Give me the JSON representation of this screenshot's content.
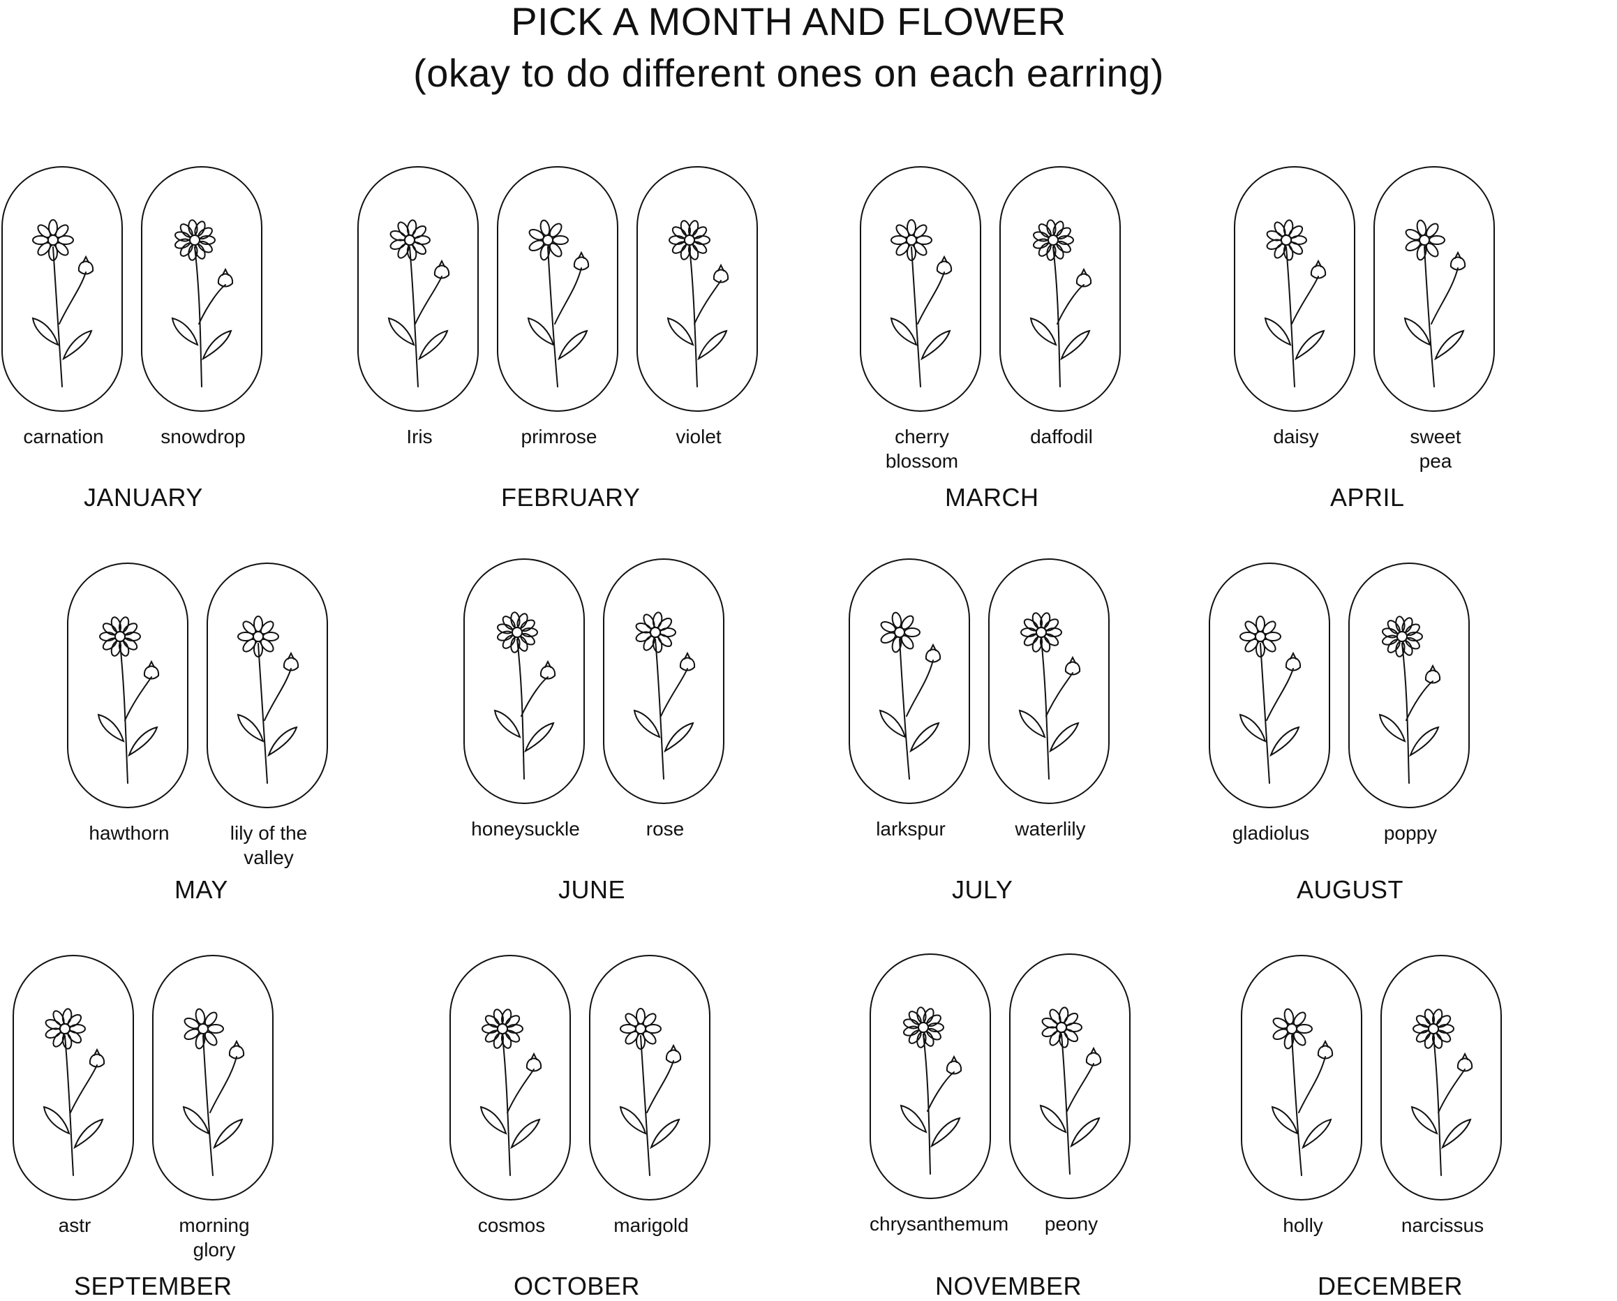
{
  "title": {
    "line1": "PICK A MONTH AND FLOWER",
    "line2": "(okay to do different ones on each earring)"
  },
  "months": [
    {
      "name": "JANUARY",
      "flowers": [
        {
          "name": "carnation",
          "icon": "carnation-icon"
        },
        {
          "name": "snowdrop",
          "icon": "snowdrop-icon"
        }
      ]
    },
    {
      "name": "FEBRUARY",
      "flowers": [
        {
          "name": "Iris",
          "icon": "iris-icon"
        },
        {
          "name": "primrose",
          "icon": "primrose-icon"
        },
        {
          "name": "violet",
          "icon": "violet-icon"
        }
      ]
    },
    {
      "name": "MARCH",
      "flowers": [
        {
          "name": "cherry\nblossom",
          "icon": "cherry-blossom-icon"
        },
        {
          "name": "daffodil",
          "icon": "daffodil-icon"
        }
      ]
    },
    {
      "name": "APRIL",
      "flowers": [
        {
          "name": "daisy",
          "icon": "daisy-icon"
        },
        {
          "name": "sweet\npea",
          "icon": "sweet-pea-icon"
        }
      ]
    },
    {
      "name": "MAY",
      "flowers": [
        {
          "name": "hawthorn",
          "icon": "hawthorn-icon"
        },
        {
          "name": "lily of the\nvalley",
          "icon": "lily-of-the-valley-icon"
        }
      ]
    },
    {
      "name": "JUNE",
      "flowers": [
        {
          "name": "honeysuckle",
          "icon": "honeysuckle-icon"
        },
        {
          "name": "rose",
          "icon": "rose-icon"
        }
      ]
    },
    {
      "name": "JULY",
      "flowers": [
        {
          "name": "larkspur",
          "icon": "larkspur-icon"
        },
        {
          "name": "waterlily",
          "icon": "waterlily-icon"
        }
      ]
    },
    {
      "name": "AUGUST",
      "flowers": [
        {
          "name": "gladiolus",
          "icon": "gladiolus-icon"
        },
        {
          "name": "poppy",
          "icon": "poppy-icon"
        }
      ]
    },
    {
      "name": "SEPTEMBER",
      "flowers": [
        {
          "name": "astr",
          "icon": "aster-icon"
        },
        {
          "name": "morning\nglory",
          "icon": "morning-glory-icon"
        }
      ]
    },
    {
      "name": "OCTOBER",
      "flowers": [
        {
          "name": "cosmos",
          "icon": "cosmos-icon"
        },
        {
          "name": "marigold",
          "icon": "marigold-icon"
        }
      ]
    },
    {
      "name": "NOVEMBER",
      "flowers": [
        {
          "name": "chrysanthemum",
          "icon": "chrysanthemum-icon"
        },
        {
          "name": "peony",
          "icon": "peony-icon"
        }
      ]
    },
    {
      "name": "DECEMBER",
      "flowers": [
        {
          "name": "holly",
          "icon": "holly-icon"
        },
        {
          "name": "narcissus",
          "icon": "narcissus-icon"
        }
      ]
    }
  ]
}
